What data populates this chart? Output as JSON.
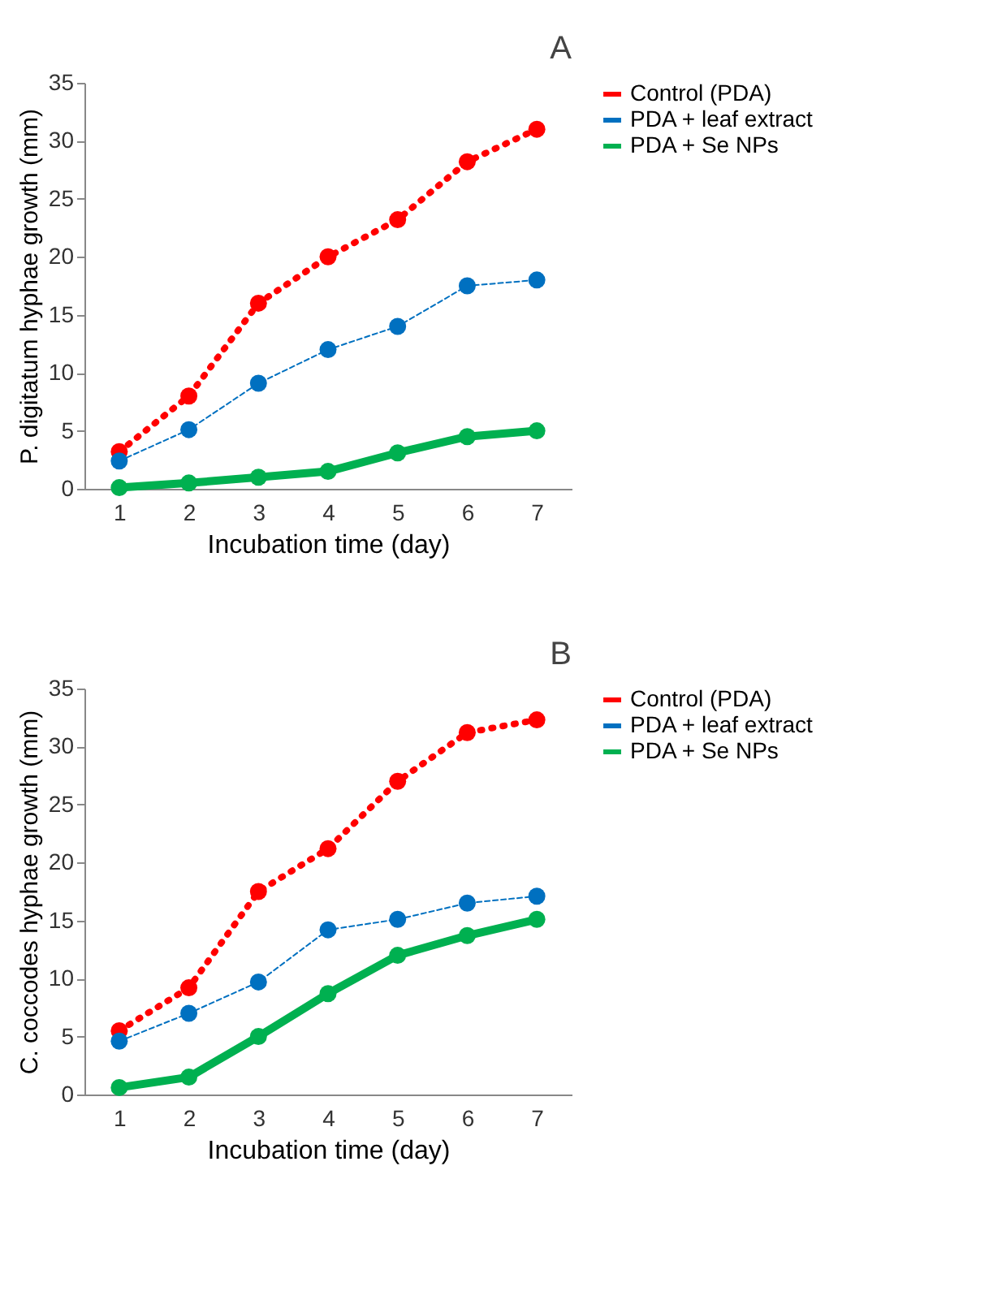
{
  "chart_data": [
    {
      "type": "line",
      "title": "A",
      "xlabel": "Incubation time (day)",
      "ylabel": "P. digitatum hyphae growth (mm)",
      "categories": [
        "1",
        "2",
        "3",
        "4",
        "5",
        "6",
        "7"
      ],
      "ylim": [
        0,
        35
      ],
      "yticks": [
        0,
        5,
        10,
        15,
        20,
        25,
        30,
        35
      ],
      "marker": "circle",
      "legend": "right",
      "grid": false,
      "series": [
        {
          "name": "Control (PDA)",
          "color": "#ff0000",
          "line_style": "dotted",
          "values": [
            3.2,
            8,
            16,
            20,
            23.2,
            28.2,
            31
          ]
        },
        {
          "name": "PDA + leaf extract",
          "color": "#0070c0",
          "line_style": "dashed",
          "values": [
            2.4,
            5.1,
            9.1,
            12,
            14,
            17.5,
            18
          ]
        },
        {
          "name": "PDA + Se NPs",
          "color": "#00b050",
          "line_style": "solid",
          "values": [
            0.1,
            0.5,
            1,
            1.5,
            3.1,
            4.5,
            5
          ]
        }
      ]
    },
    {
      "type": "line",
      "title": "B",
      "xlabel": "Incubation time (day)",
      "ylabel": "C. coccodes hyphae growth (mm)",
      "categories": [
        "1",
        "2",
        "3",
        "4",
        "5",
        "6",
        "7"
      ],
      "ylim": [
        0,
        35
      ],
      "yticks": [
        0,
        5,
        10,
        15,
        20,
        25,
        30,
        35
      ],
      "marker": "circle",
      "legend": "right",
      "grid": false,
      "series": [
        {
          "name": "Control (PDA)",
          "color": "#ff0000",
          "line_style": "dotted",
          "values": [
            5.5,
            9.2,
            17.5,
            21.2,
            27,
            31.2,
            32.3
          ]
        },
        {
          "name": "PDA + leaf extract",
          "color": "#0070c0",
          "line_style": "dashed",
          "values": [
            4.6,
            7,
            9.7,
            14.2,
            15.1,
            16.5,
            17.1
          ]
        },
        {
          "name": "PDA + Se NPs",
          "color": "#00b050",
          "line_style": "solid",
          "values": [
            0.6,
            1.5,
            5,
            8.7,
            12,
            13.7,
            15.1
          ]
        }
      ]
    }
  ]
}
